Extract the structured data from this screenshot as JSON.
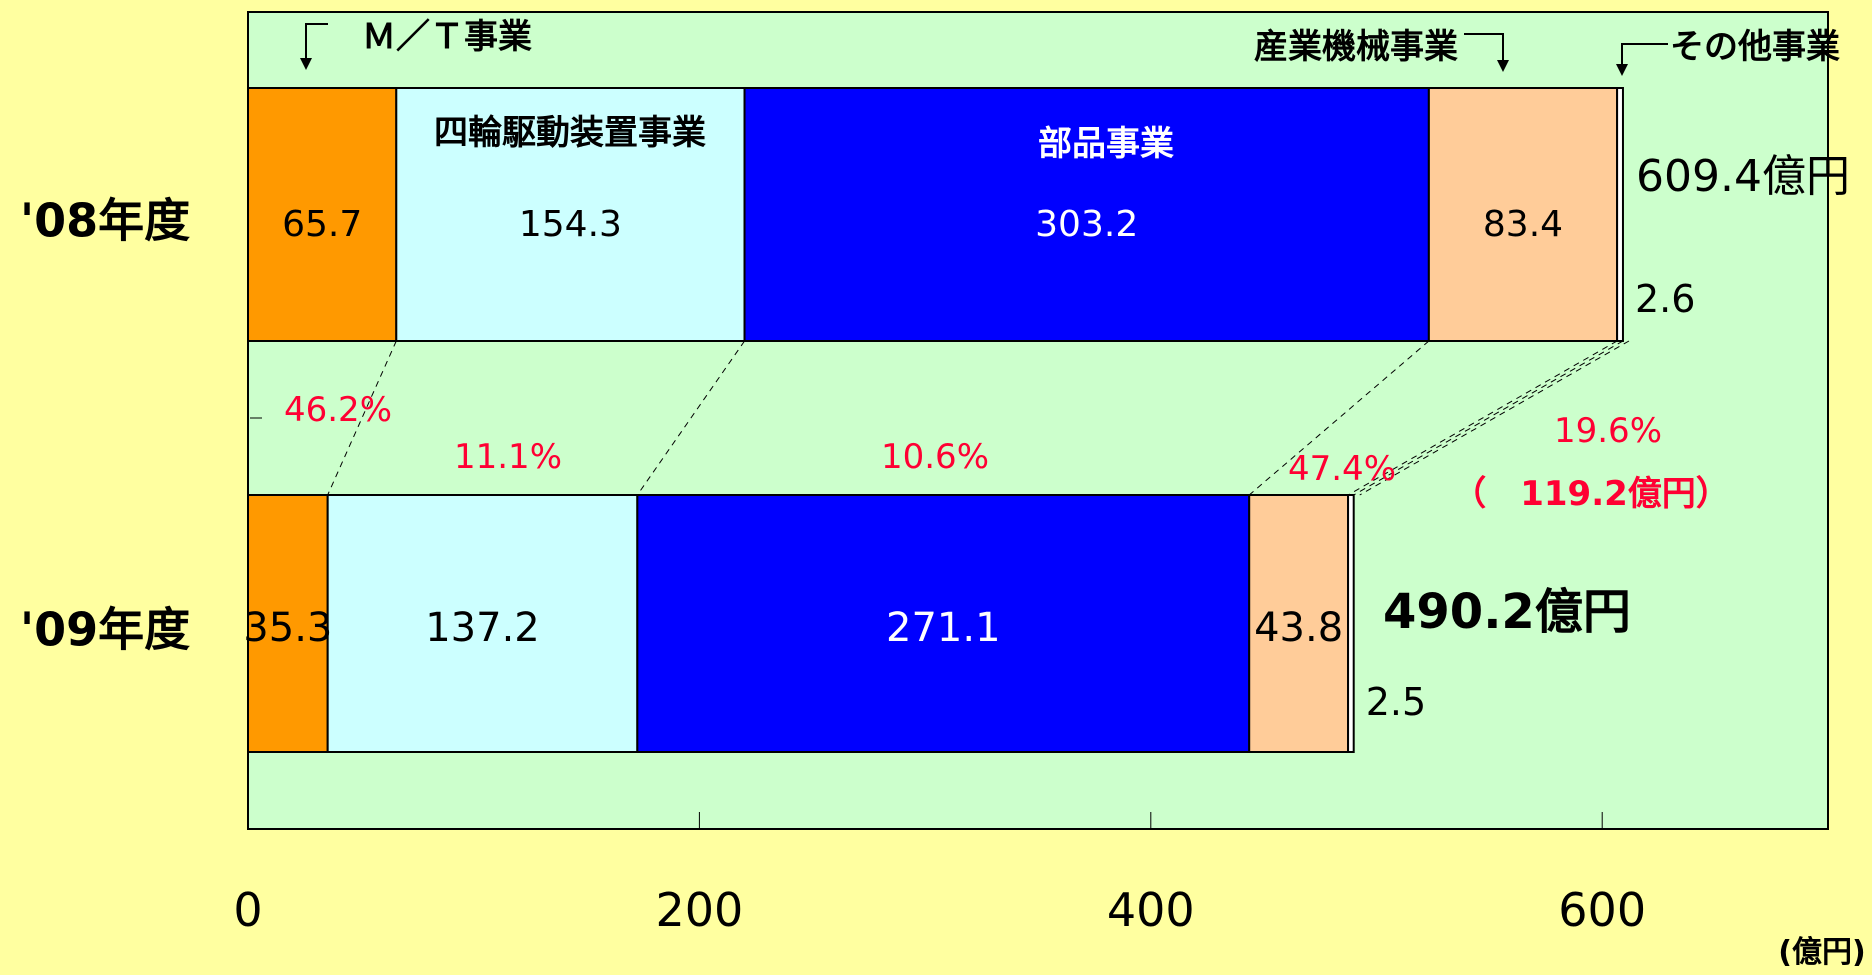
{
  "chart_data": {
    "type": "bar",
    "orientation": "horizontal",
    "stacked": true,
    "unit": "(億円)",
    "xlim": [
      0,
      700
    ],
    "x_ticks": [
      0,
      200,
      400,
      600
    ],
    "categories": [
      "'08年度",
      "'09年度"
    ],
    "series": [
      {
        "name": "M/T事業",
        "values": [
          65.7,
          35.3
        ],
        "color": "#FF9900",
        "label_color": "#000000"
      },
      {
        "name": "四輪駆動装置事業",
        "values": [
          154.3,
          137.2
        ],
        "color": "#CCFFFF",
        "label_color": "#000000"
      },
      {
        "name": "部品事業",
        "values": [
          303.2,
          271.1
        ],
        "color": "#0000FF",
        "label_color": "#FFFFFF"
      },
      {
        "name": "産業機械事業",
        "values": [
          83.4,
          43.8
        ],
        "color": "#FFCC99",
        "label_color": "#000000"
      },
      {
        "name": "その他事業",
        "values": [
          2.6,
          2.5
        ],
        "color": "#FFFFFF",
        "label_color": "#000000"
      }
    ],
    "series_legend_labels": [
      "Ｍ／Ｔ事業",
      "四輪駆動装置事業",
      "部品事業",
      "産業機械事業",
      "その他事業"
    ],
    "value_labels": [
      [
        "65.7",
        "154.3",
        "303.2",
        "83.4",
        "2.6"
      ],
      [
        "35.3",
        "137.2",
        "271.1",
        "43.8",
        "2.5"
      ]
    ],
    "totals": [
      {
        "label": "609.4億円",
        "value": 609.4
      },
      {
        "label": "490.2億円",
        "value": 490.2
      }
    ],
    "decline_percentages": [
      "46.2%",
      "11.1%",
      "10.6%",
      "47.4%"
    ],
    "total_decline": {
      "percent": "19.6%",
      "amount": "（　119.2億円）"
    },
    "colors": {
      "background": "#FFFFA0",
      "plot_area": "#CCFFCC",
      "highlight": "#FF0033"
    }
  }
}
